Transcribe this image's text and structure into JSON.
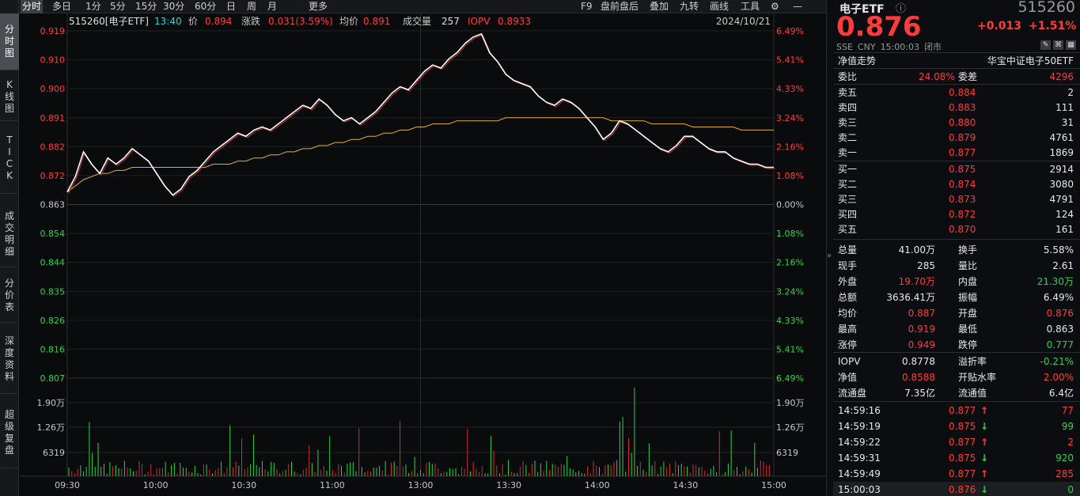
{
  "left_tabs": [
    {
      "chars": [
        "分",
        "时",
        "图"
      ],
      "active": true
    },
    {
      "chars": [
        "K",
        "线",
        "图"
      ]
    },
    {
      "chars": [
        "T",
        "I",
        "C",
        "K"
      ]
    },
    {
      "chars": [
        "成",
        "交",
        "明",
        "细"
      ]
    },
    {
      "chars": [
        "分",
        "价",
        "表"
      ]
    },
    {
      "chars": [
        "深",
        "度",
        "资",
        "料"
      ]
    },
    {
      "chars": [
        "超",
        "级",
        "复",
        "盘"
      ]
    }
  ],
  "toolbar": {
    "left": [
      "分时",
      "多日",
      "1分",
      "5分",
      "15分",
      "30分",
      "60分",
      "日",
      "周",
      "月",
      "更多"
    ],
    "right": [
      "F9",
      "盘前盘后",
      "叠加",
      "九转",
      "画线",
      "工具"
    ],
    "gear": "gear-icon",
    "minimize": "minimize-icon"
  },
  "header": {
    "code": "515260[电子ETF]",
    "time": "13:40",
    "price_label": "价",
    "price": "0.894",
    "chg_label": "涨跌",
    "chg": "0.031(3.59%)",
    "avg_label": "均价",
    "avg": "0.891",
    "vol_label": "成交量",
    "vol": "257",
    "iopv_label": "IOPV",
    "iopv": "0.8933",
    "date": "2024/10/21"
  },
  "axes": {
    "price_ticks": [
      "0.919",
      "0.910",
      "0.900",
      "0.891",
      "0.882",
      "0.872",
      "0.863",
      "0.854",
      "0.844",
      "0.835",
      "0.826",
      "0.816",
      "0.807"
    ],
    "pct_ticks": [
      "6.49%",
      "5.41%",
      "4.33%",
      "3.24%",
      "2.16%",
      "1.08%",
      "0.00%",
      "1.08%",
      "2.16%",
      "3.24%",
      "4.33%",
      "5.41%",
      "6.49%"
    ],
    "vol_ticks": [
      "1.90万",
      "1.26万",
      "6319"
    ],
    "time_ticks": [
      "09:30",
      "10:00",
      "10:30",
      "11:00",
      "13:00",
      "13:30",
      "14:00",
      "14:30",
      "15:00"
    ]
  },
  "chart_data": {
    "type": "line",
    "prev_close": 0.863,
    "ylim": [
      0.807,
      0.919
    ],
    "price": [
      0.867,
      0.872,
      0.88,
      0.876,
      0.873,
      0.878,
      0.876,
      0.878,
      0.881,
      0.879,
      0.877,
      0.873,
      0.869,
      0.866,
      0.868,
      0.872,
      0.874,
      0.877,
      0.88,
      0.882,
      0.884,
      0.886,
      0.885,
      0.887,
      0.888,
      0.887,
      0.889,
      0.891,
      0.893,
      0.895,
      0.894,
      0.897,
      0.895,
      0.892,
      0.89,
      0.891,
      0.889,
      0.891,
      0.893,
      0.896,
      0.899,
      0.901,
      0.9,
      0.903,
      0.906,
      0.908,
      0.907,
      0.91,
      0.912,
      0.915,
      0.917,
      0.918,
      0.912,
      0.909,
      0.905,
      0.903,
      0.902,
      0.901,
      0.898,
      0.896,
      0.895,
      0.897,
      0.896,
      0.894,
      0.891,
      0.888,
      0.884,
      0.886,
      0.89,
      0.889,
      0.887,
      0.885,
      0.883,
      0.881,
      0.88,
      0.882,
      0.885,
      0.885,
      0.883,
      0.881,
      0.88,
      0.88,
      0.878,
      0.877,
      0.876,
      0.876,
      0.875,
      0.875
    ],
    "avg": [
      0.867,
      0.869,
      0.871,
      0.872,
      0.873,
      0.873,
      0.874,
      0.874,
      0.875,
      0.875,
      0.875,
      0.875,
      0.875,
      0.875,
      0.875,
      0.875,
      0.875,
      0.875,
      0.876,
      0.876,
      0.876,
      0.877,
      0.877,
      0.878,
      0.878,
      0.879,
      0.879,
      0.88,
      0.88,
      0.881,
      0.881,
      0.882,
      0.882,
      0.883,
      0.883,
      0.884,
      0.884,
      0.885,
      0.885,
      0.886,
      0.886,
      0.887,
      0.887,
      0.888,
      0.888,
      0.889,
      0.889,
      0.889,
      0.89,
      0.89,
      0.89,
      0.89,
      0.89,
      0.89,
      0.891,
      0.891,
      0.891,
      0.891,
      0.891,
      0.891,
      0.891,
      0.891,
      0.891,
      0.891,
      0.891,
      0.891,
      0.891,
      0.89,
      0.89,
      0.89,
      0.89,
      0.89,
      0.889,
      0.889,
      0.889,
      0.889,
      0.889,
      0.888,
      0.888,
      0.888,
      0.888,
      0.888,
      0.888,
      0.887,
      0.887,
      0.887,
      0.887,
      0.887
    ]
  },
  "quote": {
    "name": "电子ETF",
    "code": "515260",
    "price": "0.876",
    "chg": "+0.013",
    "pct": "+1.51%",
    "meta": [
      "SSE",
      "CNY",
      "15:00:03",
      "闭市"
    ],
    "nav_label": "净值走势",
    "index_name": "华宝中证电子50ETF"
  },
  "ratio": {
    "wb_label": "委比",
    "wb": "24.08%",
    "wc_label": "委差",
    "wc": "4296"
  },
  "asks": [
    {
      "label": "卖五",
      "price": "0.884",
      "vol": "2"
    },
    {
      "label": "卖四",
      "price": "0.883",
      "vol": "111"
    },
    {
      "label": "卖三",
      "price": "0.880",
      "vol": "31"
    },
    {
      "label": "卖二",
      "price": "0.879",
      "vol": "4761"
    },
    {
      "label": "卖一",
      "price": "0.877",
      "vol": "1869"
    }
  ],
  "bids": [
    {
      "label": "买一",
      "price": "0.875",
      "vol": "2914"
    },
    {
      "label": "买二",
      "price": "0.874",
      "vol": "3080"
    },
    {
      "label": "买三",
      "price": "0.873",
      "vol": "4791"
    },
    {
      "label": "买四",
      "price": "0.872",
      "vol": "124"
    },
    {
      "label": "买五",
      "price": "0.870",
      "vol": "161"
    }
  ],
  "stats": [
    {
      "l1": "总量",
      "v1": "41.00万",
      "c1": "white",
      "l2": "换手",
      "v2": "5.58%",
      "c2": "white"
    },
    {
      "l1": "现手",
      "v1": "285",
      "c1": "white",
      "l2": "量比",
      "v2": "2.61",
      "c2": "white"
    },
    {
      "l1": "外盘",
      "v1": "19.70万",
      "c1": "red",
      "l2": "内盘",
      "v2": "21.30万",
      "c2": "green"
    },
    {
      "l1": "总额",
      "v1": "3636.41万",
      "c1": "white",
      "l2": "振幅",
      "v2": "6.49%",
      "c2": "white"
    },
    {
      "l1": "均价",
      "v1": "0.887",
      "c1": "red",
      "l2": "开盘",
      "v2": "0.876",
      "c2": "red"
    },
    {
      "l1": "最高",
      "v1": "0.919",
      "c1": "red",
      "l2": "最低",
      "v2": "0.863",
      "c2": "white"
    },
    {
      "l1": "涨停",
      "v1": "0.949",
      "c1": "red",
      "l2": "跌停",
      "v2": "0.777",
      "c2": "green"
    }
  ],
  "stats2": [
    {
      "l1": "IOPV",
      "v1": "0.8778",
      "c1": "white",
      "l2": "溢折率",
      "v2": "-0.21%",
      "c2": "green"
    },
    {
      "l1": "净值",
      "v1": "0.8588",
      "c1": "red",
      "l2": "开贴水率",
      "v2": "2.00%",
      "c2": "red"
    },
    {
      "l1": "流通盘",
      "v1": "7.35亿",
      "c1": "white",
      "l2": "流通值",
      "v2": "6.4亿",
      "c2": "white"
    }
  ],
  "ticks": [
    {
      "t": "14:59:16",
      "p": "0.877",
      "d": "up",
      "v": "77"
    },
    {
      "t": "14:59:19",
      "p": "0.875",
      "d": "down",
      "v": "99"
    },
    {
      "t": "14:59:22",
      "p": "0.877",
      "d": "up",
      "v": "2"
    },
    {
      "t": "14:59:31",
      "p": "0.875",
      "d": "down",
      "v": "920"
    },
    {
      "t": "14:59:49",
      "p": "0.877",
      "d": "up",
      "v": "285"
    },
    {
      "t": "15:00:03",
      "p": "0.876",
      "d": "down",
      "v": "0"
    }
  ]
}
